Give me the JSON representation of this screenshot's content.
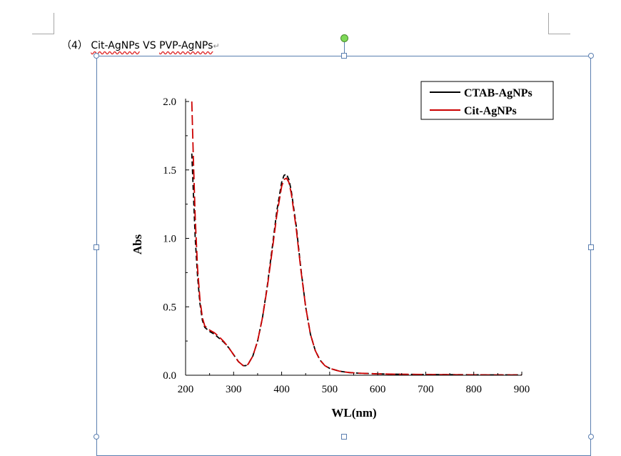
{
  "document": {
    "heading_prefix": "（4）",
    "heading_part1": "Cit-AgNPs",
    "heading_part2": " VS ",
    "heading_part3": "PVP-AgNPs",
    "return_mark": "↵"
  },
  "chart_data": {
    "type": "line",
    "title": "",
    "xlabel": "WL(nm)",
    "ylabel": "Abs",
    "xlim": [
      200,
      900
    ],
    "ylim": [
      0,
      2.0
    ],
    "xticks": [
      200,
      300,
      400,
      500,
      600,
      700,
      800,
      900
    ],
    "yticks": [
      0.0,
      0.5,
      1.0,
      1.5,
      2.0
    ],
    "xtick_labels": [
      "200",
      "300",
      "400",
      "500",
      "600",
      "700",
      "800",
      "900"
    ],
    "ytick_labels": [
      "0.0",
      "0.5",
      "1.0",
      "1.5",
      "2.0"
    ],
    "legend_position": "top-right",
    "grid": false,
    "series": [
      {
        "name": "CTAB-AgNPs",
        "color": "#000000",
        "x": [
          213,
          216,
          220,
          225,
          230,
          235,
          240,
          250,
          260,
          270,
          280,
          290,
          300,
          310,
          320,
          325,
          330,
          340,
          350,
          360,
          370,
          380,
          390,
          400,
          405,
          410,
          415,
          420,
          430,
          440,
          450,
          460,
          470,
          480,
          490,
          500,
          520,
          540,
          560,
          600,
          650,
          700,
          800,
          900
        ],
        "y": [
          1.62,
          1.35,
          1.0,
          0.72,
          0.52,
          0.4,
          0.35,
          0.32,
          0.3,
          0.27,
          0.24,
          0.2,
          0.15,
          0.1,
          0.07,
          0.07,
          0.08,
          0.14,
          0.25,
          0.42,
          0.65,
          0.92,
          1.2,
          1.41,
          1.46,
          1.47,
          1.43,
          1.35,
          1.1,
          0.78,
          0.5,
          0.3,
          0.18,
          0.11,
          0.07,
          0.05,
          0.03,
          0.02,
          0.015,
          0.01,
          0.007,
          0.005,
          0.003,
          0.002
        ]
      },
      {
        "name": "Cit-AgNPs",
        "color": "#cc0000",
        "x": [
          213,
          216,
          220,
          225,
          230,
          235,
          240,
          250,
          260,
          270,
          280,
          290,
          300,
          310,
          320,
          325,
          330,
          340,
          350,
          360,
          370,
          380,
          390,
          400,
          405,
          410,
          415,
          420,
          430,
          440,
          450,
          460,
          470,
          480,
          490,
          500,
          520,
          540,
          560,
          600,
          650,
          700,
          800,
          900
        ],
        "y": [
          2.0,
          1.6,
          1.15,
          0.78,
          0.55,
          0.42,
          0.36,
          0.33,
          0.31,
          0.28,
          0.245,
          0.2,
          0.15,
          0.1,
          0.07,
          0.07,
          0.08,
          0.14,
          0.25,
          0.42,
          0.64,
          0.9,
          1.17,
          1.38,
          1.43,
          1.44,
          1.41,
          1.33,
          1.08,
          0.77,
          0.5,
          0.3,
          0.18,
          0.11,
          0.07,
          0.05,
          0.03,
          0.02,
          0.015,
          0.01,
          0.007,
          0.005,
          0.003,
          0.002
        ]
      }
    ]
  }
}
